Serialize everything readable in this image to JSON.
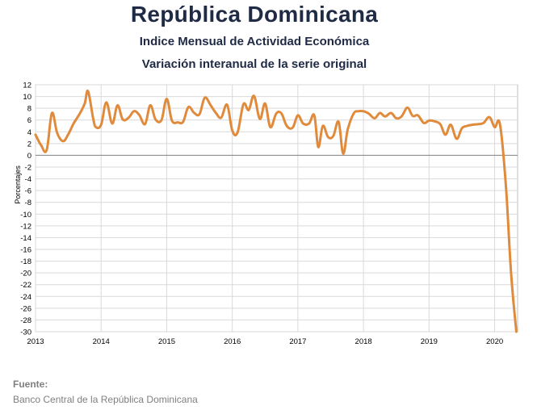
{
  "header": {
    "title": "República Dominicana",
    "subtitle1": "Indice Mensual de  Actividad Económica",
    "subtitle2": "Variación interanual de la serie original"
  },
  "footer": {
    "source_label": "Fuente:",
    "source_text": "Banco Central de la República Dominicana"
  },
  "chart_data": {
    "type": "line",
    "ylabel": "Porcentajes",
    "xlabel": "",
    "ylim": [
      -30,
      12
    ],
    "ytick_step": 2,
    "xlim": [
      2013,
      2020.35
    ],
    "xticks": [
      2013,
      2014,
      2015,
      2016,
      2017,
      2018,
      2019,
      2020
    ],
    "grid": true,
    "line_color": "#e08a3c",
    "zero_line_color": "#7f7f7f",
    "series": [
      {
        "name": "",
        "points": [
          [
            2013.0,
            3.5
          ],
          [
            2013.08,
            1.8
          ],
          [
            2013.17,
            0.9
          ],
          [
            2013.25,
            7.2
          ],
          [
            2013.33,
            3.8
          ],
          [
            2013.42,
            2.4
          ],
          [
            2013.5,
            3.6
          ],
          [
            2013.58,
            5.4
          ],
          [
            2013.67,
            7.0
          ],
          [
            2013.75,
            8.8
          ],
          [
            2013.8,
            10.9
          ],
          [
            2013.88,
            6.2
          ],
          [
            2013.92,
            4.8
          ],
          [
            2014.0,
            5.2
          ],
          [
            2014.08,
            9.0
          ],
          [
            2014.17,
            5.4
          ],
          [
            2014.25,
            8.5
          ],
          [
            2014.33,
            6.1
          ],
          [
            2014.42,
            6.4
          ],
          [
            2014.5,
            7.5
          ],
          [
            2014.58,
            6.9
          ],
          [
            2014.67,
            5.3
          ],
          [
            2014.75,
            8.5
          ],
          [
            2014.83,
            6.1
          ],
          [
            2014.92,
            6.0
          ],
          [
            2015.0,
            9.6
          ],
          [
            2015.08,
            5.9
          ],
          [
            2015.17,
            5.6
          ],
          [
            2015.25,
            5.7
          ],
          [
            2015.33,
            8.2
          ],
          [
            2015.42,
            7.2
          ],
          [
            2015.5,
            7.0
          ],
          [
            2015.58,
            9.8
          ],
          [
            2015.67,
            8.5
          ],
          [
            2015.75,
            7.2
          ],
          [
            2015.83,
            6.4
          ],
          [
            2015.92,
            8.6
          ],
          [
            2016.0,
            4.2
          ],
          [
            2016.08,
            3.9
          ],
          [
            2016.17,
            8.7
          ],
          [
            2016.25,
            7.7
          ],
          [
            2016.33,
            10.1
          ],
          [
            2016.42,
            6.2
          ],
          [
            2016.5,
            8.8
          ],
          [
            2016.58,
            4.8
          ],
          [
            2016.67,
            7.1
          ],
          [
            2016.75,
            7.1
          ],
          [
            2016.83,
            5.0
          ],
          [
            2016.92,
            4.7
          ],
          [
            2017.0,
            6.8
          ],
          [
            2017.08,
            5.4
          ],
          [
            2017.17,
            5.4
          ],
          [
            2017.25,
            6.8
          ],
          [
            2017.31,
            1.4
          ],
          [
            2017.38,
            5.0
          ],
          [
            2017.46,
            3.1
          ],
          [
            2017.54,
            3.3
          ],
          [
            2017.62,
            5.7
          ],
          [
            2017.69,
            0.3
          ],
          [
            2017.76,
            4.4
          ],
          [
            2017.85,
            7.1
          ],
          [
            2017.92,
            7.5
          ],
          [
            2018.0,
            7.5
          ],
          [
            2018.08,
            7.1
          ],
          [
            2018.17,
            6.3
          ],
          [
            2018.25,
            7.2
          ],
          [
            2018.33,
            6.6
          ],
          [
            2018.42,
            7.2
          ],
          [
            2018.5,
            6.3
          ],
          [
            2018.58,
            6.6
          ],
          [
            2018.67,
            8.1
          ],
          [
            2018.75,
            6.7
          ],
          [
            2018.83,
            6.8
          ],
          [
            2018.92,
            5.5
          ],
          [
            2019.0,
            5.9
          ],
          [
            2019.08,
            5.8
          ],
          [
            2019.17,
            5.3
          ],
          [
            2019.25,
            3.5
          ],
          [
            2019.33,
            5.2
          ],
          [
            2019.42,
            2.8
          ],
          [
            2019.5,
            4.6
          ],
          [
            2019.58,
            5.0
          ],
          [
            2019.67,
            5.2
          ],
          [
            2019.75,
            5.3
          ],
          [
            2019.83,
            5.5
          ],
          [
            2019.92,
            6.5
          ],
          [
            2020.0,
            4.8
          ],
          [
            2020.08,
            5.3
          ],
          [
            2020.17,
            -5.0
          ],
          [
            2020.25,
            -20.0
          ],
          [
            2020.33,
            -30.0
          ]
        ]
      }
    ]
  },
  "colors": {
    "title": "#1f2a44",
    "line": "#e08a3c",
    "grid": "#d9d9d9",
    "source": "#7f7f7f"
  }
}
